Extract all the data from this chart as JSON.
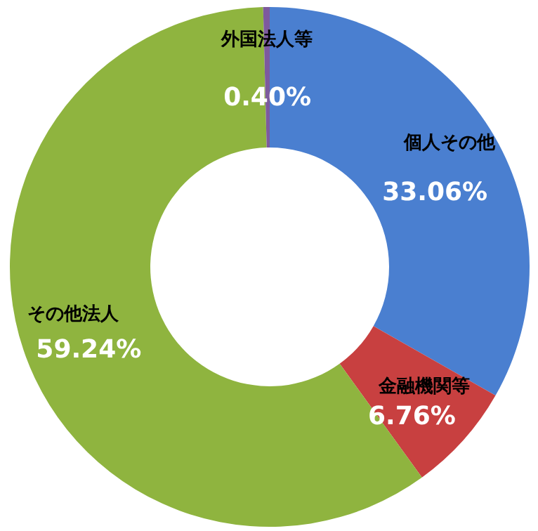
{
  "chart_data": {
    "type": "donut",
    "categories": [
      "個人その他",
      "金融機関等",
      "その他法人",
      "外国法人等"
    ],
    "values": [
      33.06,
      6.76,
      59.24,
      0.4
    ],
    "colors": [
      "#4a7fd0",
      "#c84040",
      "#8fb43f",
      "#7d5a9e"
    ],
    "value_labels": [
      "33.06%",
      "6.76%",
      "59.24%",
      "0.40%"
    ],
    "legend": false
  }
}
